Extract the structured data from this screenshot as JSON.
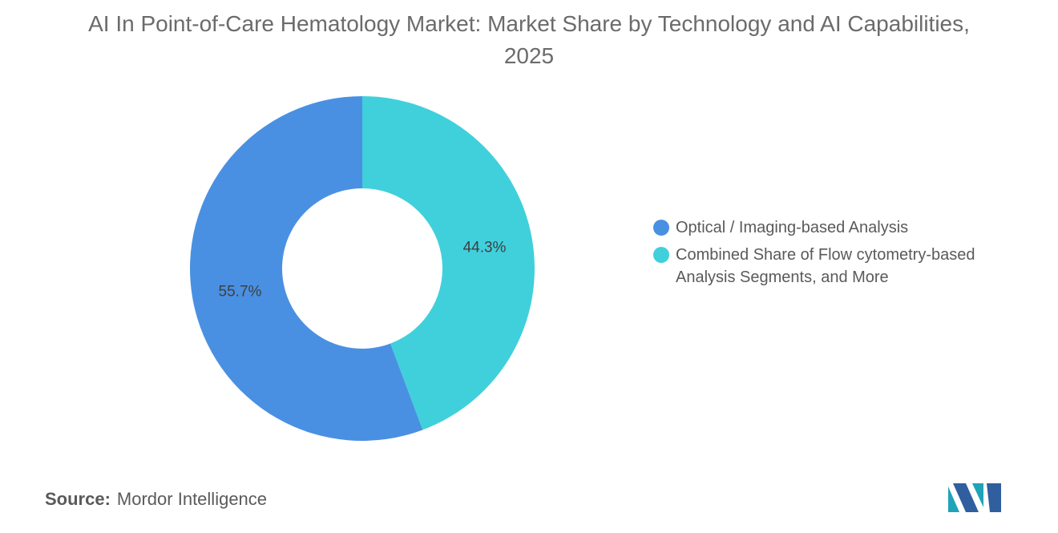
{
  "chart_data": {
    "type": "pie",
    "title": "AI In Point-of-Care Hematology Market: Market Share by Technology and AI Capabilities, 2025",
    "categories": [
      "Optical / Imaging-based Analysis",
      "Combined Share of Flow cytometry-based Analysis Segments, and More"
    ],
    "values": [
      55.7,
      44.3
    ],
    "data_labels": [
      "55.7%",
      "44.3%"
    ],
    "colors": [
      "#4a90e2",
      "#40d0dc"
    ],
    "donut": true,
    "legend_position": "right"
  },
  "source": {
    "prefix": "Source:",
    "name": "Mordor Intelligence"
  },
  "logo": {
    "colors": [
      "#1fa3b8",
      "#2f5f9e"
    ]
  }
}
